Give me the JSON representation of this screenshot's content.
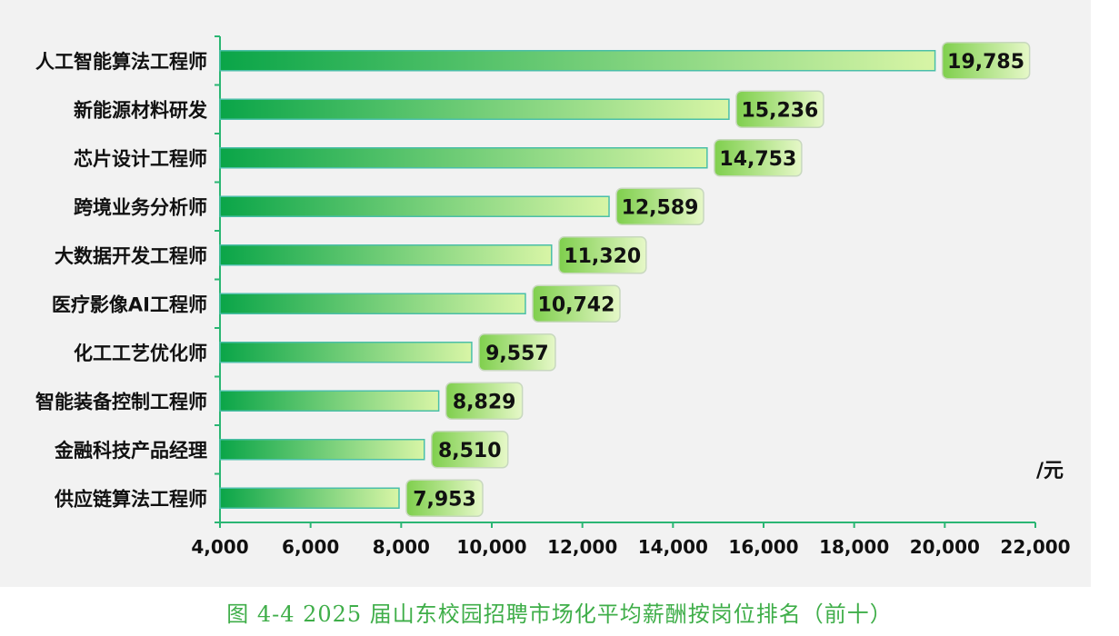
{
  "chart_data": {
    "type": "bar",
    "orientation": "horizontal",
    "categories": [
      "人工智能算法工程师",
      "新能源材料研发",
      "芯片设计工程师",
      "跨境业务分析师",
      "大数据开发工程师",
      "医疗影像AI工程师",
      "化工工艺优化师",
      "智能装备控制工程师",
      "金融科技产品经理",
      "供应链算法工程师"
    ],
    "values": [
      19785,
      15236,
      14753,
      12589,
      11320,
      10742,
      9557,
      8829,
      8510,
      7953
    ],
    "value_labels": [
      "19,785",
      "15,236",
      "14,753",
      "12,589",
      "11,320",
      "10,742",
      "9,557",
      "8,829",
      "8,510",
      "7,953"
    ],
    "xlim": [
      4000,
      22000
    ],
    "xticks": [
      4000,
      6000,
      8000,
      10000,
      12000,
      14000,
      16000,
      18000,
      20000,
      22000
    ],
    "xtick_labels": [
      "4,000",
      "6,000",
      "8,000",
      "10,000",
      "12,000",
      "14,000",
      "16,000",
      "18,000",
      "20,000",
      "22,000"
    ],
    "unit": "/元",
    "grid": false,
    "colors": {
      "bar_start": "#0aa548",
      "bar_end": "#d8f5a6",
      "bar_border": "#4bbfa8",
      "label_box_start": "#7fcf4d",
      "label_box_end": "#e6f8c8",
      "axis": "#2bb673",
      "background": "#f2f2f2"
    }
  },
  "caption": "图 4-4 2025 届山东校园招聘市场化平均薪酬按岗位排名（前十）"
}
